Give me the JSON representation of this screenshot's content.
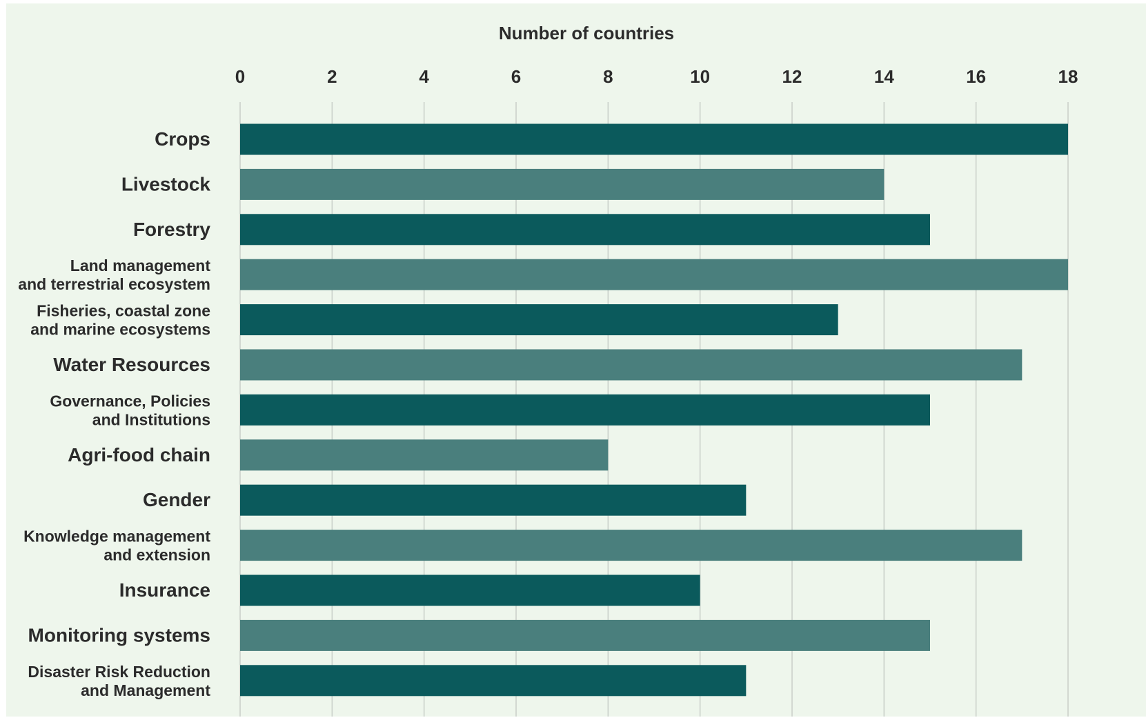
{
  "colors": {
    "background": "#eef6ec",
    "dark_bar": "#0b5a5c",
    "light_bar": "#4a7f7d",
    "gridline": "#c8cec8",
    "text": "#2b2b2b"
  },
  "chart_data": {
    "type": "bar",
    "orientation": "horizontal",
    "xlabel": "Number of countries",
    "xlim": [
      0,
      18
    ],
    "xticks": [
      0,
      2,
      4,
      6,
      8,
      10,
      12,
      14,
      16,
      18
    ],
    "grid": true,
    "categories": [
      [
        "Crops"
      ],
      [
        "Livestock"
      ],
      [
        "Forestry"
      ],
      [
        "Land management",
        "and terrestrial ecosystem"
      ],
      [
        "Fisheries, coastal zone",
        "and marine ecosystems"
      ],
      [
        "Water Resources"
      ],
      [
        "Governance, Policies",
        "and Institutions"
      ],
      [
        "Agri-food chain"
      ],
      [
        "Gender"
      ],
      [
        "Knowledge management",
        "and extension"
      ],
      [
        "Insurance"
      ],
      [
        "Monitoring systems"
      ],
      [
        "Disaster Risk Reduction",
        "and Management"
      ]
    ],
    "values": [
      18,
      14,
      15,
      18,
      13,
      17,
      15,
      8,
      11,
      17,
      10,
      15,
      11
    ]
  }
}
